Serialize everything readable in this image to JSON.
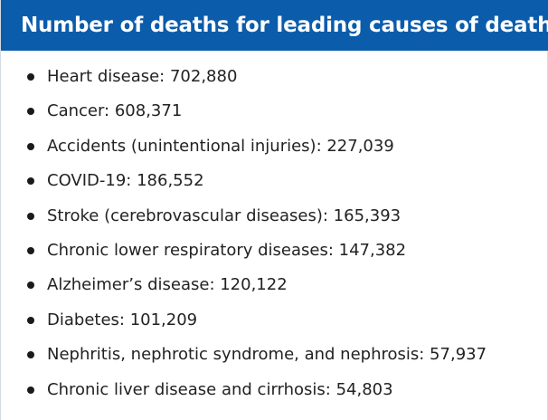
{
  "header": {
    "title": "Number of deaths for leading causes of death"
  },
  "causes": [
    {
      "label": "Heart disease: 702,880"
    },
    {
      "label": "Cancer: 608,371"
    },
    {
      "label": "Accidents (unintentional injuries): 227,039"
    },
    {
      "label": "COVID-19: 186,552"
    },
    {
      "label": "Stroke (cerebrovascular diseases): 165,393"
    },
    {
      "label": "Chronic lower respiratory diseases: 147,382"
    },
    {
      "label": "Alzheimer’s disease: 120,122"
    },
    {
      "label": "Diabetes: 101,209"
    },
    {
      "label": "Nephritis, nephrotic syndrome, and nephrosis: 57,937"
    },
    {
      "label": "Chronic liver disease and cirrhosis: 54,803"
    }
  ],
  "colors": {
    "header_background": "#0b5cab",
    "header_text": "#ffffff",
    "body_text": "#222222"
  }
}
